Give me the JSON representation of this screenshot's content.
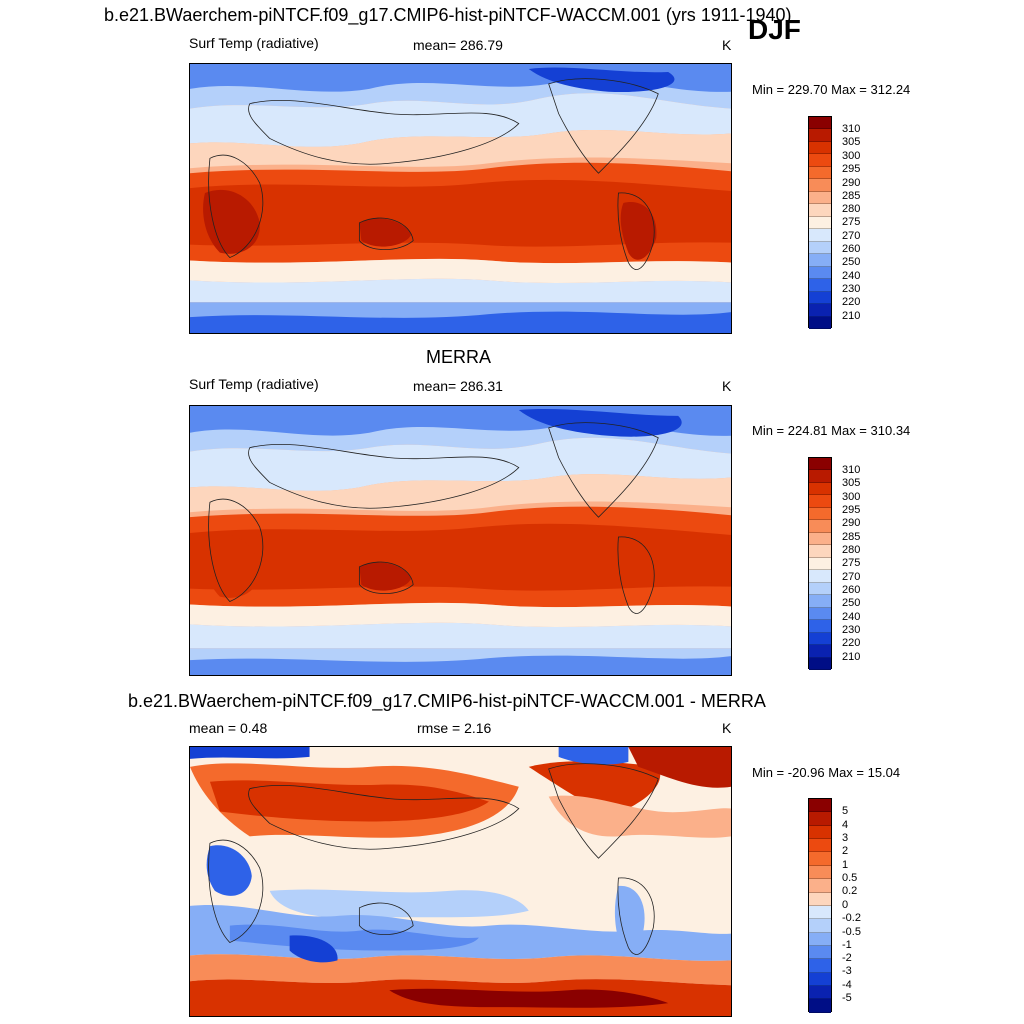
{
  "season": "DJF",
  "panels": [
    {
      "title": "b.e21.BWaerchem-piNTCF.f09_g17.CMIP6-hist-piNTCF-WACCM.001 (yrs 1911-1940)",
      "left_label": "Surf Temp (radiative)",
      "center_label": "mean= 286.79",
      "right_label": "K",
      "minmax": "Min = 229.70 Max = 312.24",
      "colorbar_ticks": [
        "310",
        "305",
        "300",
        "295",
        "290",
        "285",
        "280",
        "275",
        "270",
        "260",
        "250",
        "240",
        "230",
        "220",
        "210"
      ]
    },
    {
      "title": "MERRA",
      "left_label": "Surf Temp (radiative)",
      "center_label": "mean= 286.31",
      "right_label": "K",
      "minmax": "Min = 224.81 Max = 310.34",
      "colorbar_ticks": [
        "310",
        "305",
        "300",
        "295",
        "290",
        "285",
        "280",
        "275",
        "270",
        "260",
        "250",
        "240",
        "230",
        "220",
        "210"
      ]
    },
    {
      "title": "b.e21.BWaerchem-piNTCF.f09_g17.CMIP6-hist-piNTCF-WACCM.001 - MERRA",
      "left_label": "mean =   0.48",
      "center_label": "rmse =   2.16",
      "right_label": "K",
      "minmax": "Min = -20.96 Max =  15.04",
      "colorbar_ticks": [
        "5",
        "4",
        "3",
        "2",
        "1",
        "0.5",
        "0.2",
        "0",
        "-0.2",
        "-0.5",
        "-1",
        "-2",
        "-3",
        "-4",
        "-5"
      ]
    }
  ],
  "colors": {
    "scale": [
      "#8a0000",
      "#b81a00",
      "#d83200",
      "#ec4a10",
      "#f46a2c",
      "#f88c58",
      "#fbb08a",
      "#fdd6bd",
      "#fdf0e2",
      "#d8e8fc",
      "#b4d0fa",
      "#86aef6",
      "#5a8af0",
      "#2e62e8",
      "#1440d4",
      "#0a22b0",
      "#000e86"
    ]
  }
}
